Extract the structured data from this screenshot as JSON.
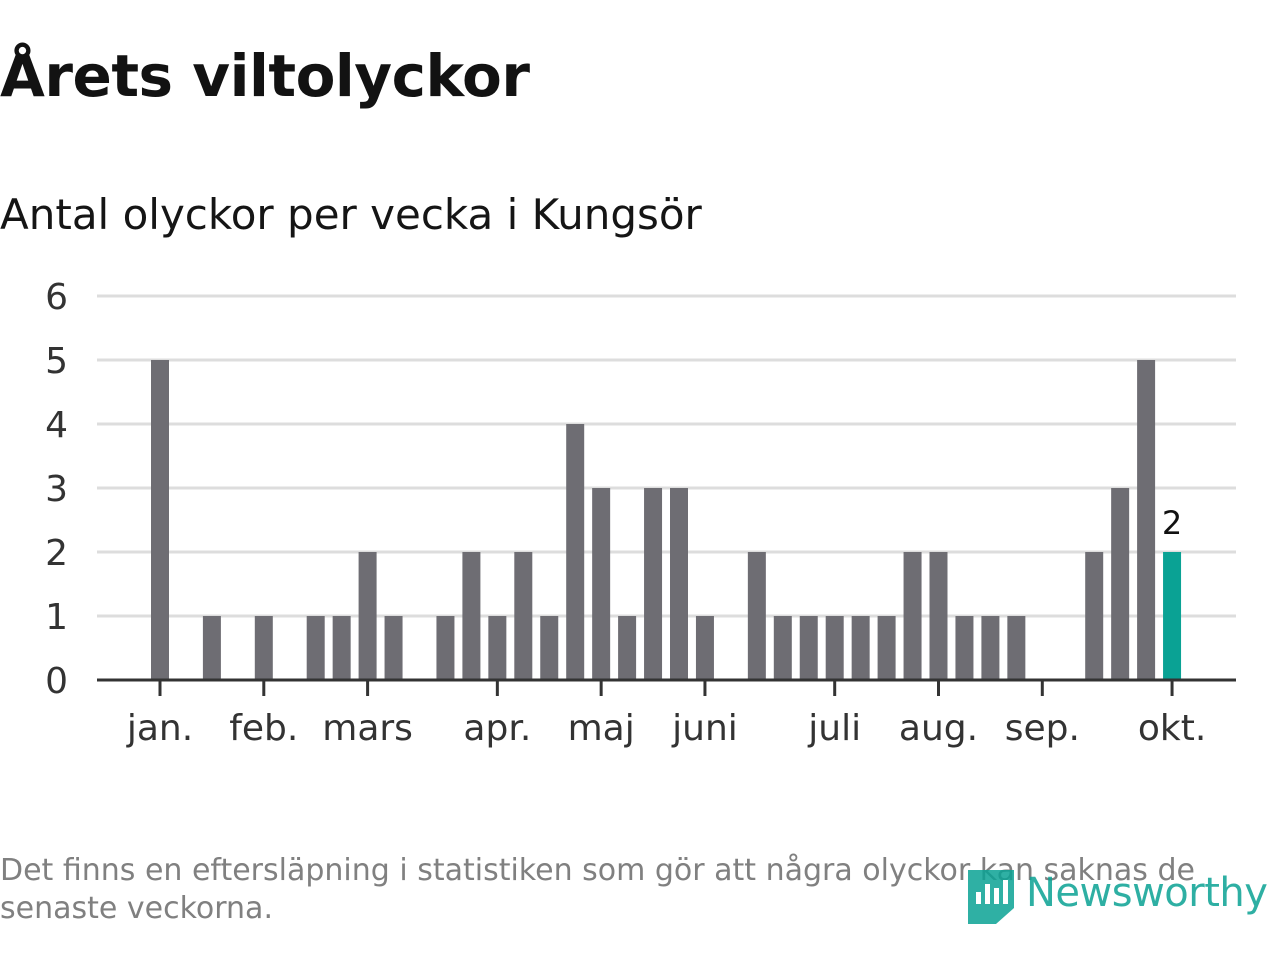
{
  "title": "Årets viltolyckor",
  "subtitle": "Antal olyckor per vecka i Kungsör",
  "footnote": "Det finns en eftersläpning i statistiken som gör att några olyckor kan saknas de senaste veckorna.",
  "logo": {
    "text": "Newsworthy",
    "icon": "newsworthy-logo-icon"
  },
  "colors": {
    "bar": "#6e6d73",
    "highlight": "#0aa294",
    "grid": "#dddddd",
    "axis": "#333333",
    "text": "#333333"
  },
  "chart_data": {
    "type": "bar",
    "ylim": [
      0,
      6
    ],
    "yticks": [
      0,
      1,
      2,
      3,
      4,
      5,
      6
    ],
    "grid": true,
    "month_labels": [
      "jan.",
      "feb.",
      "mars",
      "apr.",
      "maj",
      "juni",
      "juli",
      "aug.",
      "sep.",
      "okt."
    ],
    "month_start_week": [
      1,
      5,
      9,
      14,
      18,
      22,
      27,
      31,
      35,
      40
    ],
    "weeks": [
      1,
      2,
      3,
      4,
      5,
      6,
      7,
      8,
      9,
      10,
      11,
      12,
      13,
      14,
      15,
      16,
      17,
      18,
      19,
      20,
      21,
      22,
      23,
      24,
      25,
      26,
      27,
      28,
      29,
      30,
      31,
      32,
      33,
      34,
      35,
      36,
      37,
      38,
      39,
      40
    ],
    "values": [
      5,
      0,
      1,
      0,
      1,
      0,
      1,
      1,
      2,
      1,
      0,
      1,
      2,
      1,
      2,
      1,
      4,
      3,
      1,
      3,
      3,
      1,
      0,
      2,
      1,
      1,
      1,
      1,
      1,
      2,
      2,
      1,
      1,
      1,
      0,
      0,
      2,
      3,
      5,
      2
    ],
    "highlight_index": 39,
    "highlight_label": "2"
  }
}
